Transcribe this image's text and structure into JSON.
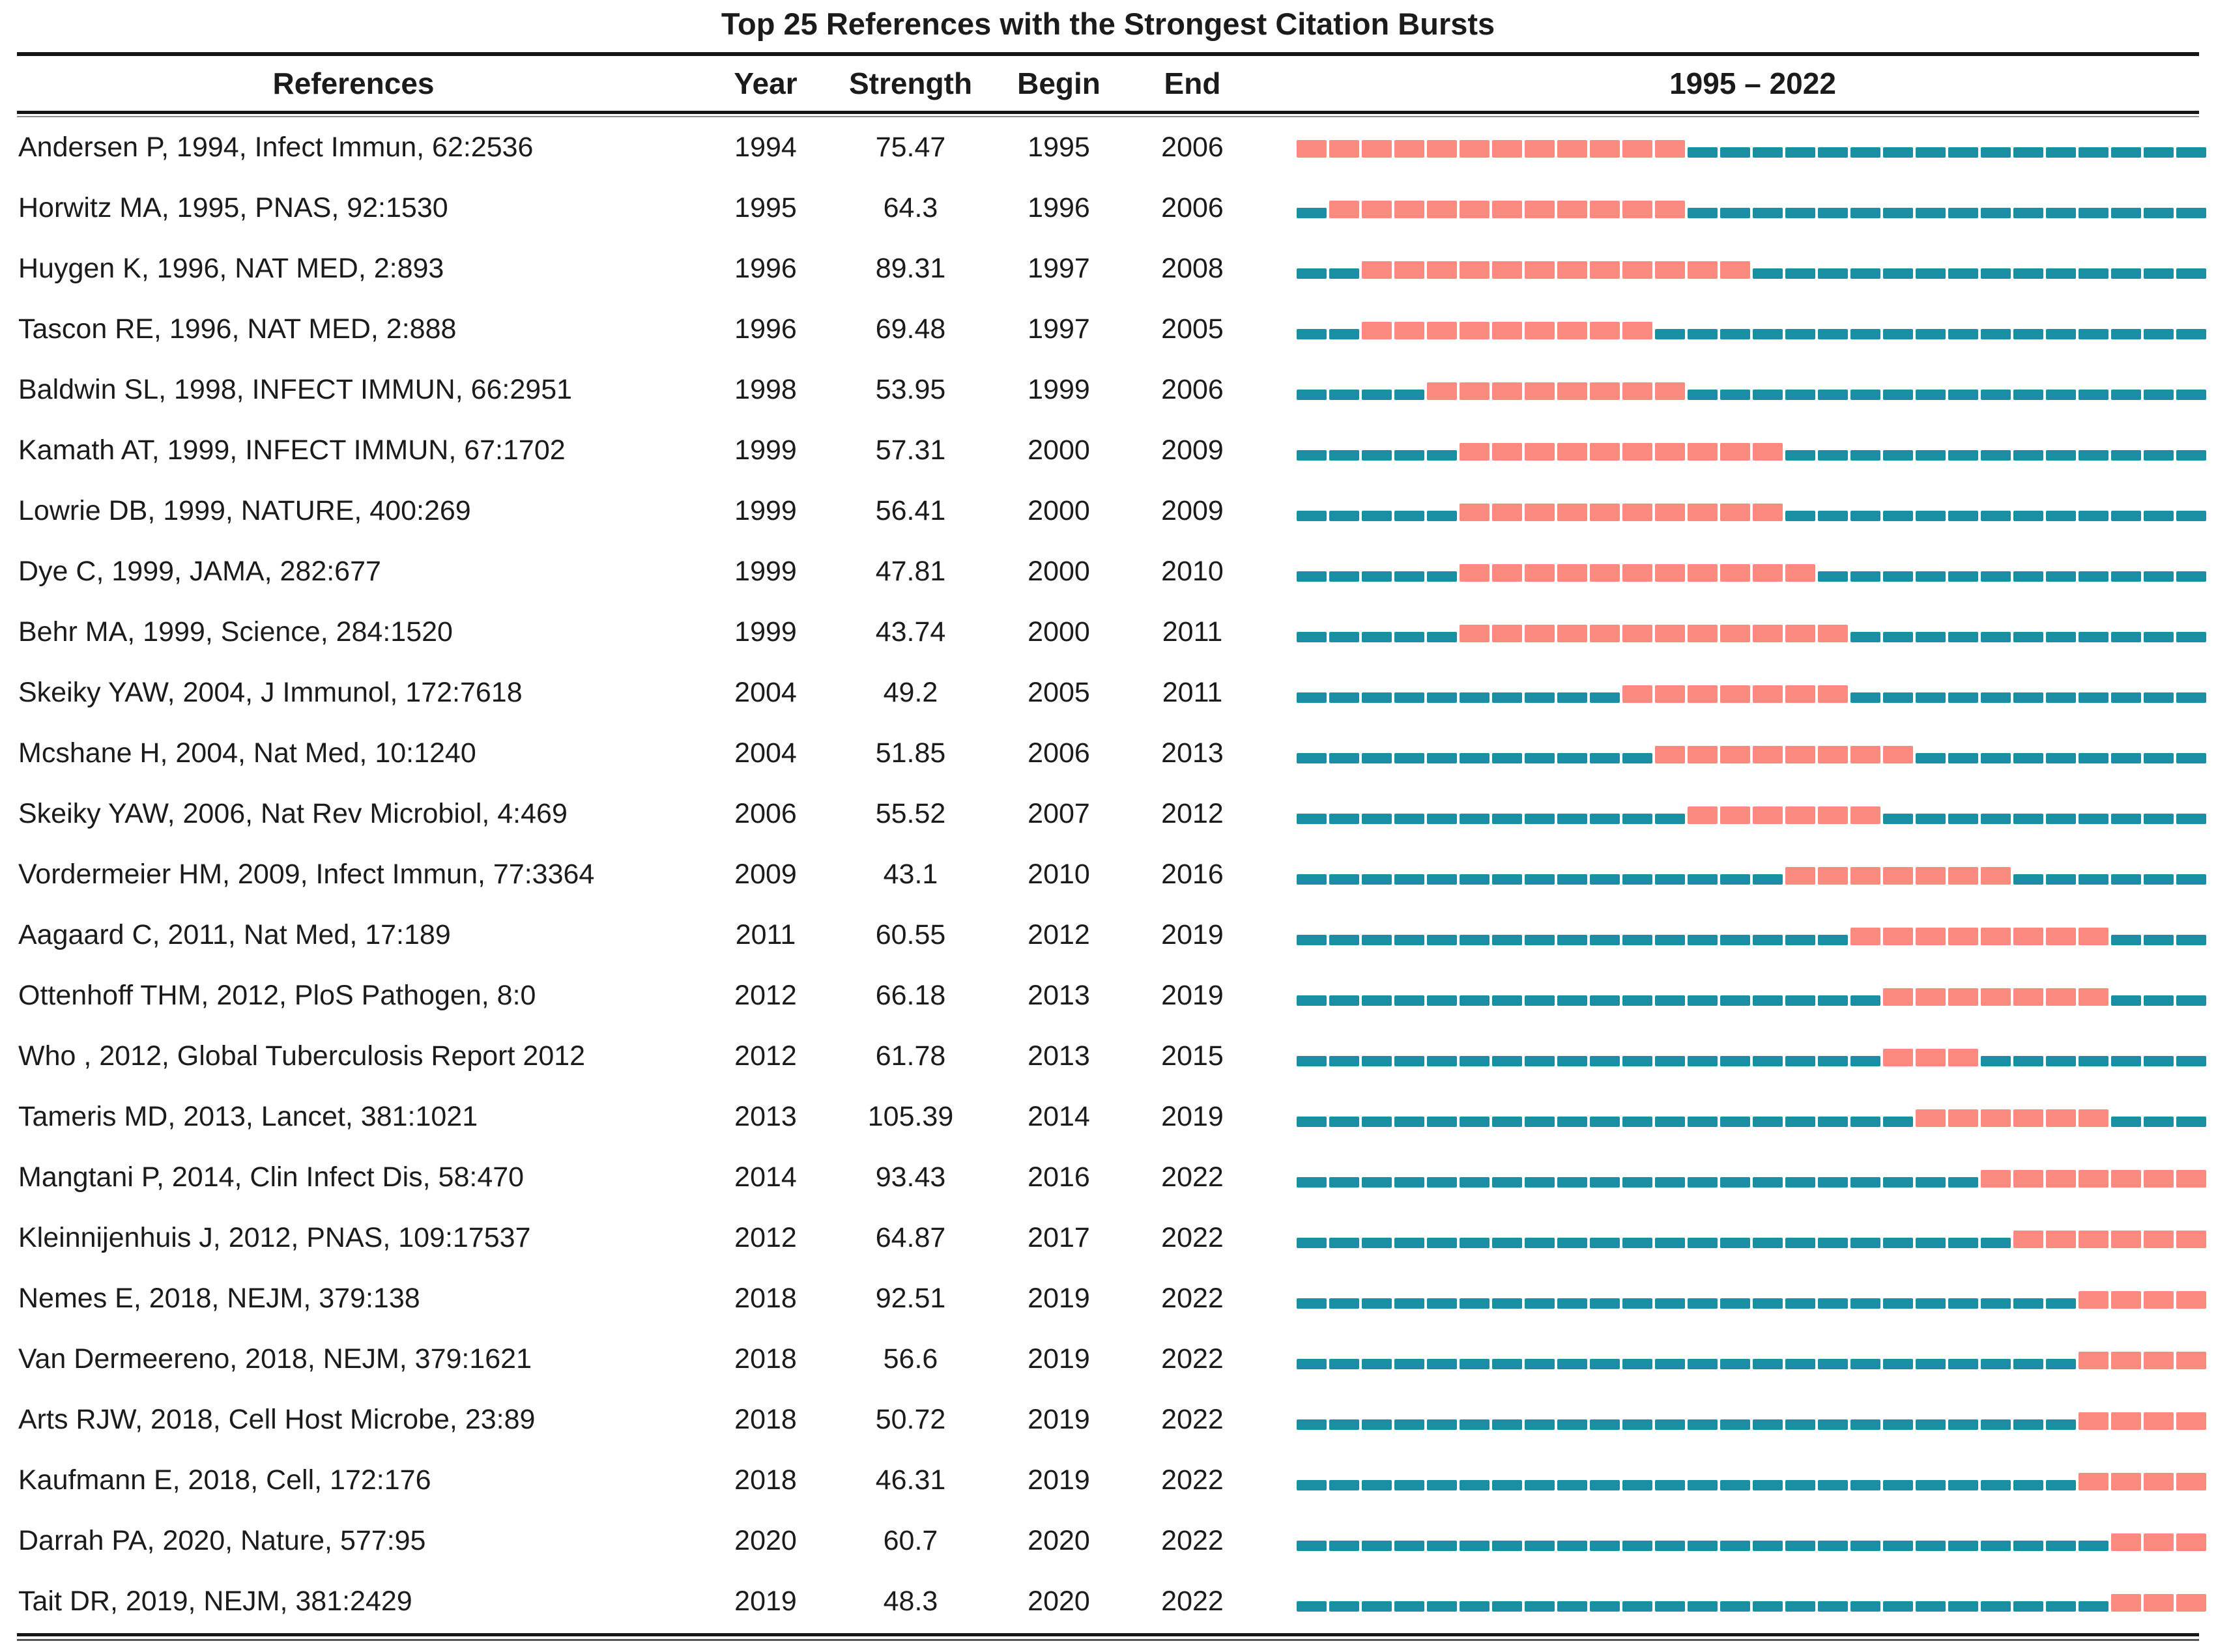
{
  "title": "Top 25 References with the Strongest Citation Bursts",
  "header": {
    "references": "References",
    "year": "Year",
    "strength": "Strength",
    "begin": "Begin",
    "end": "End",
    "period": "1995 – 2022"
  },
  "colors": {
    "burst": "#FA8A80",
    "base": "#1A8EA3",
    "text": "#1B1B1B",
    "rule": "#161616"
  },
  "chart_data": {
    "type": "table",
    "title": "Top 25 References with the Strongest Citation Bursts",
    "columns": [
      "References",
      "Year",
      "Strength",
      "Begin",
      "End",
      "1995 – 2022"
    ],
    "timeline": {
      "start": 1995,
      "end": 2022
    },
    "rows": [
      {
        "reference": "Andersen P, 1994, Infect Immun, 62:2536",
        "year": "1994",
        "strength": "75.47",
        "begin": "1995",
        "end": "2006"
      },
      {
        "reference": "Horwitz MA, 1995, PNAS, 92:1530",
        "year": "1995",
        "strength": "64.3",
        "begin": "1996",
        "end": "2006"
      },
      {
        "reference": "Huygen K, 1996, NAT MED, 2:893",
        "year": "1996",
        "strength": "89.31",
        "begin": "1997",
        "end": "2008"
      },
      {
        "reference": "Tascon RE, 1996, NAT MED, 2:888",
        "year": "1996",
        "strength": "69.48",
        "begin": "1997",
        "end": "2005"
      },
      {
        "reference": "Baldwin SL, 1998, INFECT IMMUN, 66:2951",
        "year": "1998",
        "strength": "53.95",
        "begin": "1999",
        "end": "2006"
      },
      {
        "reference": "Kamath AT, 1999, INFECT IMMUN, 67:1702",
        "year": "1999",
        "strength": "57.31",
        "begin": "2000",
        "end": "2009"
      },
      {
        "reference": "Lowrie DB, 1999, NATURE, 400:269",
        "year": "1999",
        "strength": "56.41",
        "begin": "2000",
        "end": "2009"
      },
      {
        "reference": "Dye C, 1999, JAMA, 282:677",
        "year": "1999",
        "strength": "47.81",
        "begin": "2000",
        "end": "2010"
      },
      {
        "reference": "Behr MA, 1999, Science, 284:1520",
        "year": "1999",
        "strength": "43.74",
        "begin": "2000",
        "end": "2011"
      },
      {
        "reference": "Skeiky YAW, 2004, J Immunol, 172:7618",
        "year": "2004",
        "strength": "49.2",
        "begin": "2005",
        "end": "2011"
      },
      {
        "reference": "Mcshane H, 2004, Nat Med, 10:1240",
        "year": "2004",
        "strength": "51.85",
        "begin": "2006",
        "end": "2013"
      },
      {
        "reference": "Skeiky YAW, 2006, Nat Rev Microbiol, 4:469",
        "year": "2006",
        "strength": "55.52",
        "begin": "2007",
        "end": "2012"
      },
      {
        "reference": "Vordermeier HM, 2009, Infect Immun, 77:3364",
        "year": "2009",
        "strength": "43.1",
        "begin": "2010",
        "end": "2016"
      },
      {
        "reference": "Aagaard C, 2011, Nat Med, 17:189",
        "year": "2011",
        "strength": "60.55",
        "begin": "2012",
        "end": "2019"
      },
      {
        "reference": "Ottenhoff THM, 2012, PloS Pathogen, 8:0",
        "year": "2012",
        "strength": "66.18",
        "begin": "2013",
        "end": "2019"
      },
      {
        "reference": "Who , 2012, Global Tuberculosis Report 2012",
        "year": "2012",
        "strength": "61.78",
        "begin": "2013",
        "end": "2015"
      },
      {
        "reference": "Tameris MD, 2013, Lancet, 381:1021",
        "year": "2013",
        "strength": "105.39",
        "begin": "2014",
        "end": "2019"
      },
      {
        "reference": "Mangtani P, 2014, Clin Infect Dis, 58:470",
        "year": "2014",
        "strength": "93.43",
        "begin": "2016",
        "end": "2022"
      },
      {
        "reference": "Kleinnijenhuis J, 2012, PNAS, 109:17537",
        "year": "2012",
        "strength": "64.87",
        "begin": "2017",
        "end": "2022"
      },
      {
        "reference": "Nemes E, 2018, NEJM, 379:138",
        "year": "2018",
        "strength": "92.51",
        "begin": "2019",
        "end": "2022"
      },
      {
        "reference": "Van Dermeereno, 2018, NEJM, 379:1621",
        "year": "2018",
        "strength": "56.6",
        "begin": "2019",
        "end": "2022"
      },
      {
        "reference": "Arts RJW, 2018, Cell Host Microbe, 23:89",
        "year": "2018",
        "strength": "50.72",
        "begin": "2019",
        "end": "2022"
      },
      {
        "reference": "Kaufmann E, 2018, Cell, 172:176",
        "year": "2018",
        "strength": "46.31",
        "begin": "2019",
        "end": "2022"
      },
      {
        "reference": "Darrah PA, 2020, Nature, 577:95",
        "year": "2020",
        "strength": "60.7",
        "begin": "2020",
        "end": "2022"
      },
      {
        "reference": "Tait DR, 2019, NEJM, 381:2429",
        "year": "2019",
        "strength": "48.3",
        "begin": "2020",
        "end": "2022"
      }
    ]
  }
}
